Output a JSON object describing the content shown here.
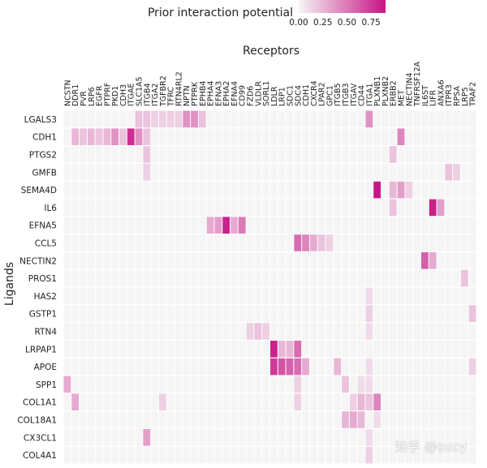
{
  "chart_data": {
    "type": "heatmap",
    "title": "",
    "legend_title": "Prior interaction potential",
    "legend_ticks": [
      "0.00",
      "0.25",
      "0.50",
      "0.75"
    ],
    "legend_range": [
      0,
      0.9
    ],
    "xlabel": "Receptors",
    "ylabel": "Ligands",
    "colors": {
      "low": "#f5f5f5",
      "high": "#c71585"
    },
    "receptors": [
      "NCSTN",
      "DDR1",
      "PVR",
      "LRP6",
      "EGFR",
      "PTPRF",
      "PKD1",
      "CDH3",
      "ITGAE",
      "SLC1A5",
      "ITGB4",
      "ITGA2",
      "TGFBR2",
      "TFRC",
      "RTN4RL2",
      "NPTN",
      "PTPRK",
      "EPHB4",
      "EPHA4",
      "EFNA3",
      "EPHA2",
      "EFNA4",
      "CD99",
      "FZD6",
      "VLDLR",
      "SORL1",
      "LDLR",
      "LRP1",
      "SDC1",
      "SDC4",
      "CDH1",
      "CXCR4",
      "LPAR2",
      "GPC1",
      "ITGB5",
      "ITGB3",
      "ITGAV",
      "CD44",
      "ITGA1",
      "PLXNB1",
      "PLXNB2",
      "ERBB2",
      "MET",
      "NECTIN4",
      "TNFRSF12A",
      "IL6ST",
      "LIFR",
      "ANXA6",
      "ITPR3",
      "RPSA",
      "LRP5",
      "TRAF2"
    ],
    "ligands": [
      "LGALS3",
      "CDH1",
      "PTGS2",
      "GMFB",
      "SEMA4D",
      "IL6",
      "EFNA5",
      "CCL5",
      "NECTIN2",
      "PROS1",
      "HAS2",
      "GSTP1",
      "RTN4",
      "LRPAP1",
      "APOE",
      "SPP1",
      "COL1A1",
      "COL18A1",
      "CX3CL1",
      "COL4A1"
    ],
    "values": {
      "LGALS3": {
        "SLC1A5": 0.2,
        "ITGB4": 0.2,
        "ITGA2": 0.15,
        "TGFBR2": 0.15,
        "TFRC": 0.15,
        "RTN4RL2": 0.15,
        "NPTN": 0.4,
        "PTPRK": 0.4,
        "EPHB4": 0.2,
        "ITGA1": 0.4
      },
      "CDH1": {
        "DDR1": 0.25,
        "PVR": 0.2,
        "LRP6": 0.25,
        "EGFR": 0.2,
        "PTPRF": 0.25,
        "PKD1": 0.4,
        "CDH3": 0.2,
        "ITGAE": 0.8,
        "SLC1A5": 0.4,
        "ITGB4": 0.2,
        "MET": 0.45
      },
      "PTGS2": {
        "ITGB4": 0.2,
        "ERBB2": 0.2
      },
      "GMFB": {
        "ITGB4": 0.15,
        "ITPR3": 0.2,
        "RPSA": 0.15
      },
      "SEMA4D": {
        "PLXNB1": 0.9,
        "ERBB2": 0.25,
        "MET": 0.35,
        "NECTIN4": 0.15
      },
      "IL6": {
        "ERBB2": 0.2,
        "LIFR": 0.85,
        "ANXA6": 0.35
      },
      "EFNA5": {
        "EPHA4": 0.3,
        "EPHA2": 0.85,
        "EFNA3": 0.35,
        "EFNA4": 0.3,
        "CD99": 0.5
      },
      "CCL5": {
        "SDC4": 0.55,
        "CDH1": 0.45,
        "CXCR4": 0.3,
        "LPAR2": 0.2,
        "GPC1": 0.15
      },
      "NECTIN2": {
        "IL6ST": 0.6,
        "LIFR": 0.3
      },
      "PROS1": {
        "LRP5": 0.2
      },
      "HAS2": {
        "ITGA1": 0.1
      },
      "GSTP1": {
        "ITGA1": 0.15,
        "TRAF2": 0.2
      },
      "RTN4": {
        "FZD6": 0.15,
        "VLDLR": 0.2,
        "SORL1": 0.15,
        "ITGA1": 0.1
      },
      "LRPAP1": {
        "LDLR": 0.85,
        "LRP1": 0.25,
        "SDC1": 0.25,
        "SDC4": 0.55
      },
      "APOE": {
        "LDLR": 0.75,
        "LRP1": 0.65,
        "SDC1": 0.6,
        "SDC4": 0.55,
        "CDH1": 0.3,
        "ITGB5": 0.25,
        "ITGA1": 0.1,
        "TRAF2": 0.15
      },
      "SPP1": {
        "NCSTN": 0.3,
        "SDC4": 0.15,
        "ITGB3": 0.2,
        "CD44": 0.1,
        "ITGA1": 0.1
      },
      "COL1A1": {
        "DDR1": 0.3,
        "TGFBR2": 0.15,
        "SDC4": 0.15,
        "ITGAV": 0.15,
        "CD44": 0.25,
        "ITGA1": 0.2,
        "PLXNB1": 0.45
      },
      "COL18A1": {
        "ITGB3": 0.25,
        "ITGAV": 0.3,
        "CD44": 0.25,
        "PLXNB1": 0.1
      },
      "CX3CL1": {
        "ITGB4": 0.35,
        "ITGA1": 0.1
      },
      "COL4A1": {
        "ITGA1": 0.15
      }
    }
  },
  "watermark": "知乎 @sucy"
}
